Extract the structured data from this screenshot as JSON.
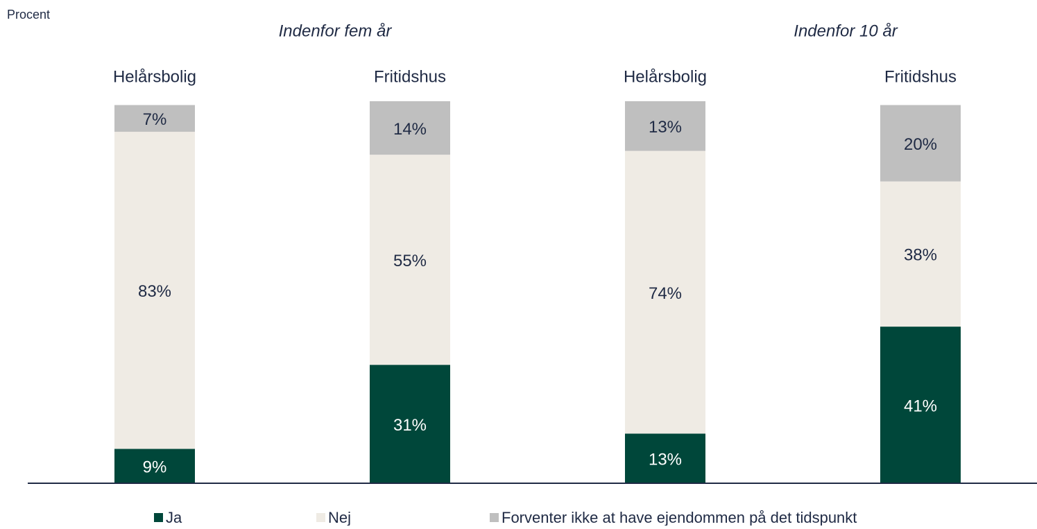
{
  "chart_data": {
    "type": "stacked_bar",
    "y_label": "Procent",
    "groups": [
      "Indenfor fem år",
      "Indenfor 10 år"
    ],
    "categories": [
      "Helårsbolig",
      "Fritidshus",
      "Helårsbolig",
      "Fritidshus"
    ],
    "ylim": [
      0,
      100
    ],
    "series": [
      {
        "name": "Ja",
        "color": "#00473a",
        "values": [
          9,
          31,
          13,
          41
        ],
        "value_labels": [
          "9%",
          "31%",
          "13%",
          "41%"
        ]
      },
      {
        "name": "Nej",
        "color": "#efebe4",
        "values": [
          83,
          55,
          74,
          38
        ],
        "value_labels": [
          "83%",
          "55%",
          "74%",
          "38%"
        ]
      },
      {
        "name": "Forventer ikke at have ejendommen på det tidspunkt",
        "color": "#bfbfbf",
        "values": [
          7,
          14,
          13,
          20
        ],
        "value_labels": [
          "7%",
          "14%",
          "13%",
          "20%"
        ]
      }
    ]
  }
}
